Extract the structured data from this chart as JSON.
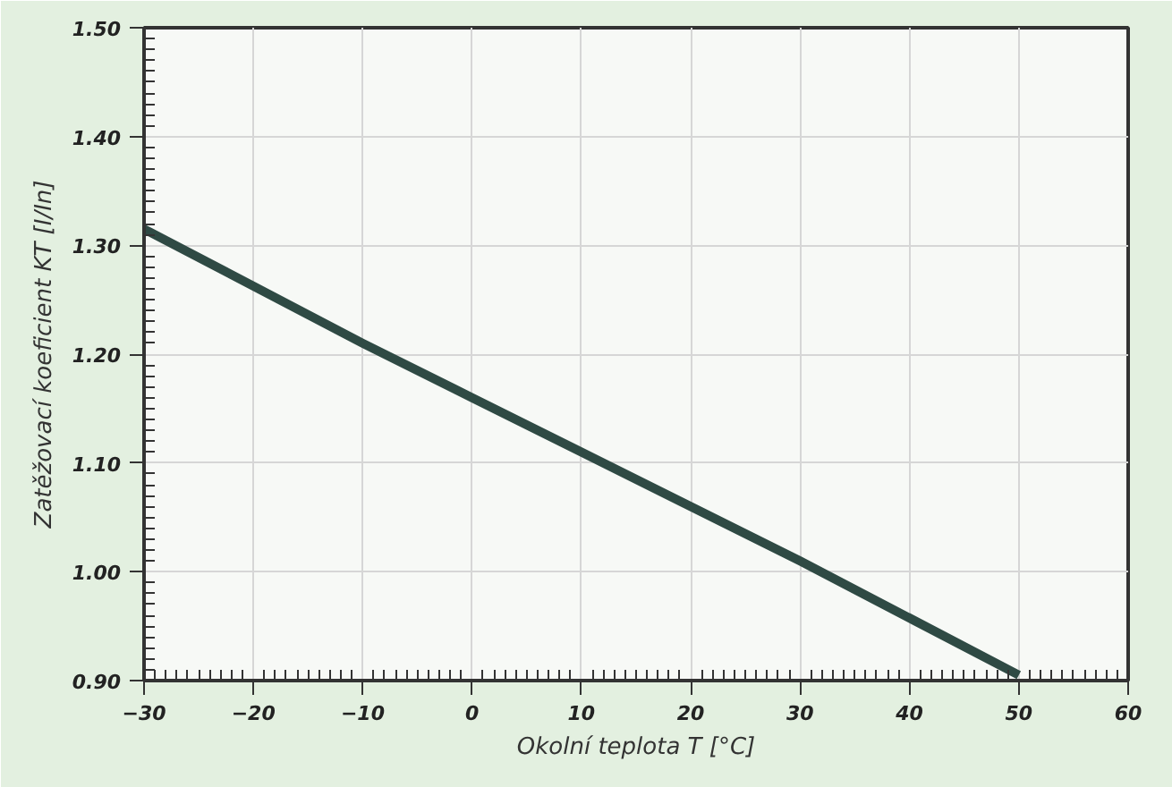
{
  "chart_data": {
    "type": "line",
    "xlabel": "Okolní teplota T [°C]",
    "ylabel": "Zatěžovací koeficient KT [I/In]",
    "x": [
      -30,
      -10,
      0,
      10,
      30,
      50
    ],
    "series": [
      {
        "color": "#2f4a44",
        "values": [
          1.315,
          1.21,
          1.16,
          1.11,
          1.01,
          0.905
        ]
      }
    ],
    "xlim": [
      -30,
      60
    ],
    "xticks": [
      -30,
      -20,
      -10,
      0,
      10,
      20,
      30,
      40,
      50,
      60
    ],
    "ylim": [
      0.9,
      1.5
    ],
    "yticks": [
      {
        "value": 0.9,
        "label": "0.90"
      },
      {
        "value": 1.0,
        "label": "1.00"
      },
      {
        "value": 1.1,
        "label": "1.10"
      },
      {
        "value": 1.2,
        "label": "1.20"
      },
      {
        "value": 1.3,
        "label": "1.30"
      },
      {
        "value": 1.4,
        "label": "1.40"
      },
      {
        "value": 1.5,
        "label": "1.50"
      }
    ],
    "grid": true,
    "marker": "none",
    "line_style": "solid"
  }
}
